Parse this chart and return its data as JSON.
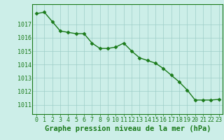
{
  "x": [
    0,
    1,
    2,
    3,
    4,
    5,
    6,
    7,
    8,
    9,
    10,
    11,
    12,
    13,
    14,
    15,
    16,
    17,
    18,
    19,
    20,
    21,
    22,
    23
  ],
  "y": [
    1017.8,
    1017.9,
    1017.2,
    1016.5,
    1016.4,
    1016.3,
    1016.3,
    1015.6,
    1015.2,
    1015.2,
    1015.3,
    1015.6,
    1015.0,
    1014.5,
    1014.3,
    1014.1,
    1013.7,
    1013.2,
    1012.7,
    1012.1,
    1011.35,
    1011.35,
    1011.35,
    1011.4
  ],
  "line_color": "#1a7a1a",
  "marker": "D",
  "marker_size": 2.5,
  "bg_color": "#cceee8",
  "grid_color": "#9ecec8",
  "title": "Graphe pression niveau de la mer (hPa)",
  "ylabel_ticks": [
    1011,
    1012,
    1013,
    1014,
    1015,
    1016,
    1017
  ],
  "ylim": [
    1010.3,
    1018.5
  ],
  "xlim": [
    -0.5,
    23.5
  ],
  "xlabel_ticks": [
    0,
    1,
    2,
    3,
    4,
    5,
    6,
    7,
    8,
    9,
    10,
    11,
    12,
    13,
    14,
    15,
    16,
    17,
    18,
    19,
    20,
    21,
    22,
    23
  ],
  "title_color": "#1a7a1a",
  "title_fontsize": 7.5,
  "tick_fontsize": 6.0,
  "tick_color": "#1a7a1a",
  "axis_color": "#1a7a1a",
  "linewidth": 1.0
}
